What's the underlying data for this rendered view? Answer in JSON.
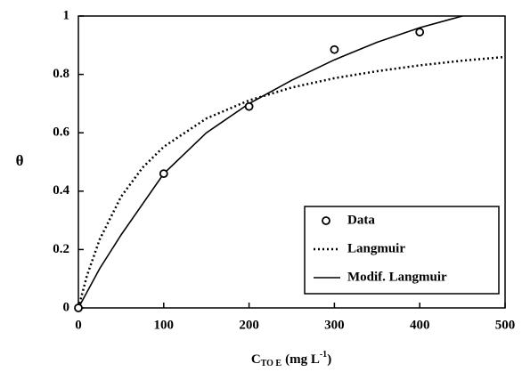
{
  "chart_data": {
    "type": "scatter",
    "x_label": {
      "main": "C",
      "sub": "TO E",
      "unit": "(mg  L",
      "sup": "-1",
      "close": ")"
    },
    "y_label": "θ",
    "xlim": [
      0,
      500
    ],
    "xticks": [
      0,
      100,
      200,
      300,
      400,
      500
    ],
    "ylim": [
      0,
      1
    ],
    "yticks": [
      0,
      0.2,
      0.4,
      0.6,
      0.8,
      1
    ],
    "legend": "lower right",
    "series": [
      {
        "name": "Data",
        "style": "markers",
        "color": "#000000",
        "x": [
          0,
          100,
          200,
          300,
          400
        ],
        "values": [
          0,
          0.46,
          0.69,
          0.885,
          0.945
        ]
      },
      {
        "name": "Langmuir",
        "style": "dotted",
        "color": "#000000",
        "x": [
          0,
          10,
          25,
          50,
          75,
          100,
          150,
          200,
          250,
          300,
          350,
          400,
          450,
          500
        ],
        "values": [
          0,
          0.11,
          0.235,
          0.381,
          0.48,
          0.552,
          0.649,
          0.711,
          0.755,
          0.787,
          0.811,
          0.831,
          0.847,
          0.86
        ]
      },
      {
        "name": "Modif. Langmuir",
        "style": "solid",
        "color": "#000000",
        "x": [
          0,
          25,
          50,
          100,
          150,
          200,
          250,
          300,
          350,
          400,
          450
        ],
        "values": [
          0,
          0.135,
          0.25,
          0.46,
          0.6,
          0.7,
          0.78,
          0.85,
          0.91,
          0.96,
          1
        ]
      }
    ]
  }
}
